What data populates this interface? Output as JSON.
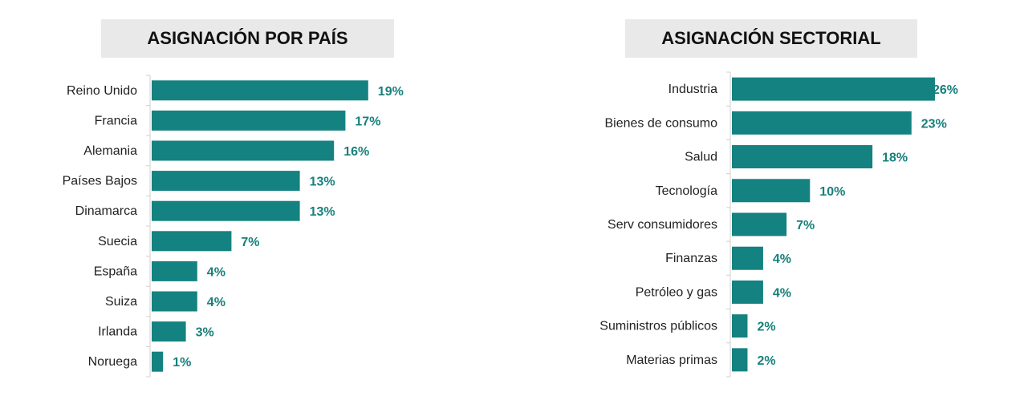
{
  "colors": {
    "bar": "#148280",
    "value_label": "#17807b",
    "title_bg": "#e9e9e9",
    "axis": "#d0d0d0"
  },
  "chart_data": [
    {
      "type": "bar",
      "orientation": "horizontal",
      "title": "ASIGNACIÓN POR PAÍS",
      "categories": [
        "Reino Unido",
        "Francia",
        "Alemania",
        "Países Bajos",
        "Dinamarca",
        "Suecia",
        "España",
        "Suiza",
        "Irlanda",
        "Noruega"
      ],
      "values": [
        19,
        17,
        16,
        13,
        13,
        7,
        4,
        4,
        3,
        1
      ],
      "labels": [
        "19%",
        "17%",
        "16%",
        "13%",
        "13%",
        "7%",
        "4%",
        "4%",
        "3%",
        "1%"
      ],
      "unit": "%",
      "grid": false
    },
    {
      "type": "bar",
      "orientation": "horizontal",
      "title": "ASIGNACIÓN SECTORIAL",
      "categories": [
        "Industria",
        "Bienes de consumo",
        "Salud",
        "Tecnología",
        "Serv consumidores",
        "Finanzas",
        "Petróleo y gas",
        "Suministros públicos",
        "Materias primas"
      ],
      "values": [
        26,
        23,
        18,
        10,
        7,
        4,
        4,
        2,
        2
      ],
      "labels": [
        "26%",
        "23%",
        "18%",
        "10%",
        "7%",
        "4%",
        "4%",
        "2%",
        "2%"
      ],
      "unit": "%",
      "grid": false
    }
  ]
}
